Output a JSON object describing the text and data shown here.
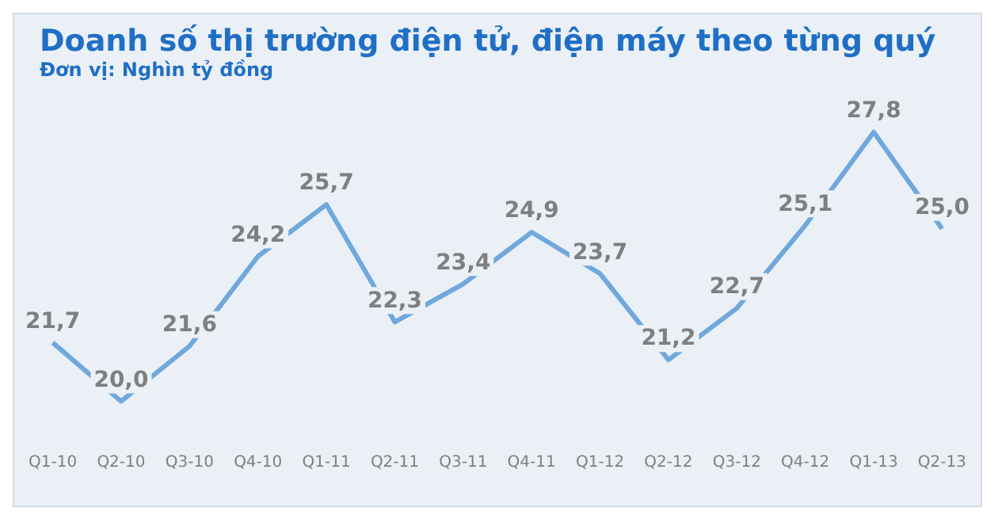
{
  "chart_data": {
    "type": "line",
    "title": "Doanh số thị trường điện tử, điện máy theo từng quý",
    "subtitle": "Đơn vị: Nghìn tỷ đồng",
    "categories": [
      "Q1-10",
      "Q2-10",
      "Q3-10",
      "Q4-10",
      "Q1-11",
      "Q2-11",
      "Q3-11",
      "Q4-11",
      "Q1-12",
      "Q2-12",
      "Q3-12",
      "Q4-12",
      "Q1-13",
      "Q2-13"
    ],
    "series": [
      {
        "color": "#6fa8dc",
        "values": [
          21.7,
          20.0,
          21.6,
          24.2,
          25.7,
          22.3,
          23.4,
          24.9,
          23.7,
          21.2,
          22.7,
          25.1,
          27.8,
          25.0
        ],
        "value_labels": [
          "21,7",
          "20,0",
          "21,6",
          "24,2",
          "25,7",
          "22,3",
          "23,4",
          "24,9",
          "23,7",
          "21,2",
          "22,7",
          "25,1",
          "27,8",
          "25,0"
        ]
      }
    ],
    "marker": "none",
    "grid": false,
    "legend": false,
    "tick_labels": "x"
  }
}
